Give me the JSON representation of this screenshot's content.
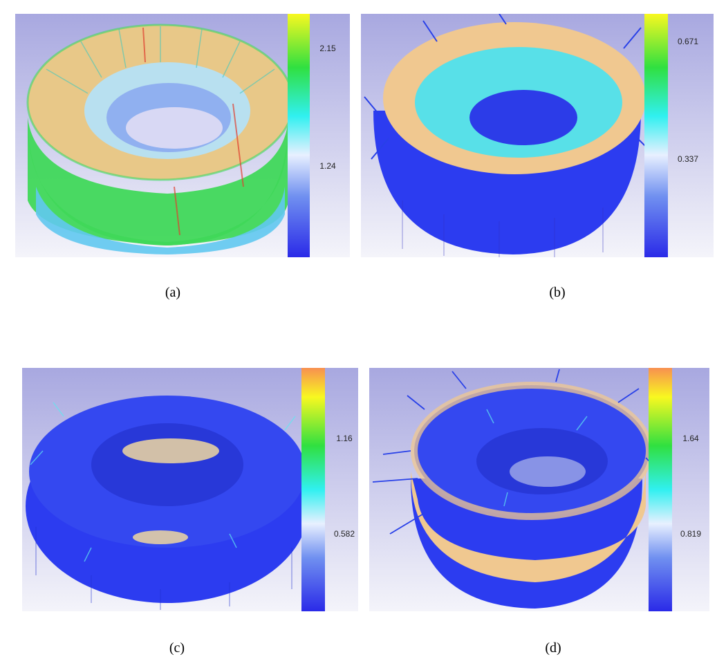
{
  "panels": [
    {
      "caption": "(a)",
      "colorbar": {
        "top_label": "2.15",
        "mid_label": "1.24",
        "has_orange_top": false
      },
      "torus": {
        "dominant": "green-cyan",
        "top_color": "#f0c890",
        "side_color": "#40d060",
        "inner_color": "#90b8f0",
        "spike_color": "#4060e8"
      }
    },
    {
      "caption": "(b)",
      "colorbar": {
        "top_label": "0.671",
        "mid_label": "0.337",
        "has_orange_top": false
      },
      "torus": {
        "dominant": "blue-orange",
        "top_color": "#f0c890",
        "side_color": "#3848f0",
        "inner_color": "#40e0e0",
        "spike_color": "#2840e8"
      }
    },
    {
      "caption": "(c)",
      "colorbar": {
        "top_label": "1.16",
        "mid_label": "0.582",
        "has_orange_top": true
      },
      "torus": {
        "dominant": "blue",
        "top_color": "#3048f0",
        "side_color": "#2838e8",
        "inner_color": "#f0d8a0",
        "spike_color": "#2840e8"
      }
    },
    {
      "caption": "(d)",
      "colorbar": {
        "top_label": "1.64",
        "mid_label": "0.819",
        "has_orange_top": true
      },
      "torus": {
        "dominant": "blue-orange",
        "top_color": "#3848f0",
        "side_color": "#f0c890",
        "inner_color": "#2838d8",
        "spike_color": "#2840e8"
      }
    }
  ]
}
